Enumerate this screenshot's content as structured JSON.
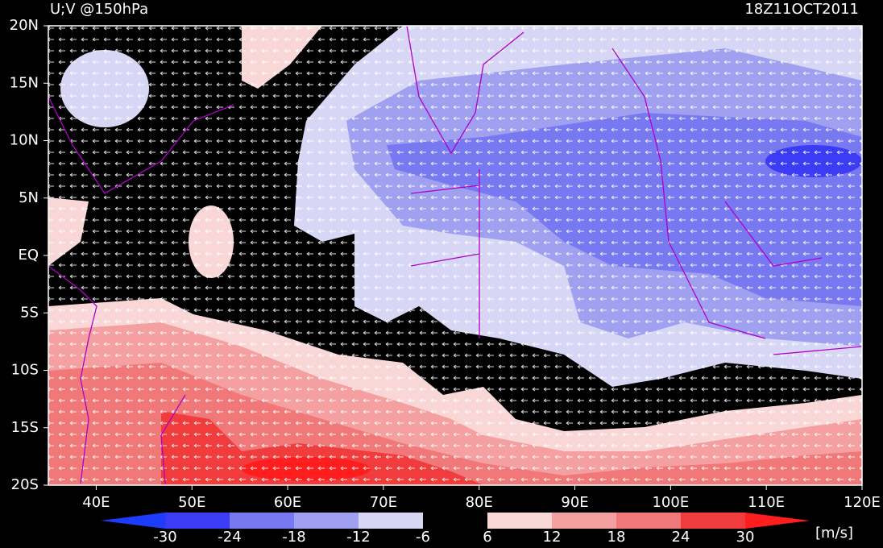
{
  "chart_data": {
    "type": "map",
    "title": "U;V @150hPa",
    "date": "18Z11OCT2011",
    "xlim": [
      35,
      120
    ],
    "ylim": [
      -20,
      20
    ],
    "xticks": [
      {
        "value": 40,
        "label": "40E"
      },
      {
        "value": 50,
        "label": "50E"
      },
      {
        "value": 60,
        "label": "60E"
      },
      {
        "value": 70,
        "label": "70E"
      },
      {
        "value": 80,
        "label": "80E"
      },
      {
        "value": 90,
        "label": "90E"
      },
      {
        "value": 100,
        "label": "100E"
      },
      {
        "value": 110,
        "label": "110E"
      },
      {
        "value": 120,
        "label": "120E"
      }
    ],
    "yticks": [
      {
        "value": 20,
        "label": "20N"
      },
      {
        "value": 15,
        "label": "15N"
      },
      {
        "value": 10,
        "label": "10N"
      },
      {
        "value": 5,
        "label": "5N"
      },
      {
        "value": 0,
        "label": "EQ"
      },
      {
        "value": -5,
        "label": "5S"
      },
      {
        "value": -10,
        "label": "10S"
      },
      {
        "value": -15,
        "label": "15S"
      },
      {
        "value": -20,
        "label": "20S"
      }
    ],
    "colorbar": {
      "levels": [
        -30,
        -24,
        -18,
        -12,
        -6,
        6,
        12,
        18,
        24,
        30
      ],
      "colors": [
        "#1e3cff",
        "#3c3cf5",
        "#7878f0",
        "#a0a0f0",
        "#d7d7f5",
        "#000000",
        "#fad7d7",
        "#f5a0a0",
        "#f07878",
        "#f03c3c",
        "#ff1e1e"
      ],
      "units": "[m/s]"
    }
  }
}
